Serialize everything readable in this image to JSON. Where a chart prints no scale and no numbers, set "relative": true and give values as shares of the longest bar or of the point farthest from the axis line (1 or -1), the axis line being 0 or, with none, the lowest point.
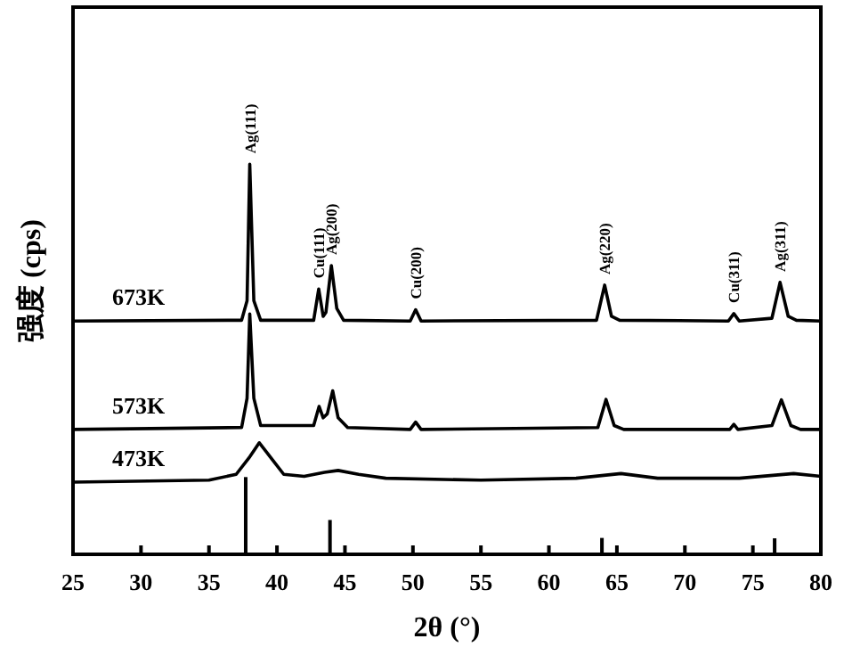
{
  "chart_data": {
    "type": "line",
    "xlabel": "2θ (°)",
    "ylabel": "强度 (cps)",
    "relative": true,
    "xlim": [
      25,
      80
    ],
    "xticks": [
      25,
      30,
      35,
      40,
      45,
      50,
      55,
      60,
      65,
      70,
      75,
      80
    ],
    "line_style": "solid",
    "series": [
      {
        "name": "673K",
        "color": "#000000",
        "x": [
          25,
          37.4,
          37.8,
          38.0,
          38.3,
          38.8,
          42.7,
          43.07,
          43.4,
          43.6,
          44.0,
          44.4,
          44.9,
          49.8,
          50.2,
          50.6,
          63.5,
          64.1,
          64.6,
          65.2,
          73.2,
          73.6,
          74.0,
          76.4,
          77.0,
          77.6,
          78.2,
          80
        ],
        "values": [
          0.598,
          0.6,
          0.65,
          1.0,
          0.65,
          0.6,
          0.6,
          0.68,
          0.61,
          0.62,
          0.74,
          0.63,
          0.6,
          0.598,
          0.627,
          0.598,
          0.6,
          0.69,
          0.61,
          0.6,
          0.598,
          0.617,
          0.598,
          0.605,
          0.697,
          0.61,
          0.6,
          0.598
        ]
      },
      {
        "name": "573K",
        "color": "#000000",
        "x": [
          25,
          37.4,
          37.8,
          38.0,
          38.3,
          38.8,
          42.7,
          43.1,
          43.4,
          43.7,
          44.1,
          44.5,
          45.2,
          49.8,
          50.2,
          50.6,
          63.6,
          64.2,
          64.8,
          65.5,
          73.3,
          73.6,
          73.9,
          76.4,
          77.1,
          77.8,
          78.5,
          80
        ],
        "values": [
          0.32,
          0.325,
          0.4,
          0.616,
          0.4,
          0.33,
          0.33,
          0.379,
          0.35,
          0.36,
          0.419,
          0.35,
          0.325,
          0.32,
          0.339,
          0.32,
          0.325,
          0.397,
          0.33,
          0.32,
          0.32,
          0.333,
          0.32,
          0.33,
          0.396,
          0.33,
          0.32,
          0.32
        ]
      },
      {
        "name": "473K",
        "color": "#000000",
        "x": [
          25,
          35,
          37,
          38,
          38.7,
          39.5,
          40.5,
          42,
          43.5,
          44.5,
          46,
          48,
          55,
          62,
          65.3,
          68,
          74,
          78,
          80
        ],
        "values": [
          0.185,
          0.19,
          0.205,
          0.25,
          0.286,
          0.25,
          0.205,
          0.2,
          0.21,
          0.215,
          0.205,
          0.195,
          0.19,
          0.195,
          0.207,
          0.195,
          0.195,
          0.207,
          0.2
        ]
      },
      {
        "type": "bar",
        "color": "#000000",
        "x": [
          37.7,
          43.9,
          63.9,
          76.6
        ],
        "values": [
          0.198,
          0.088,
          0.042,
          0.041
        ]
      }
    ],
    "annotations": [
      {
        "text": "Ag(111)",
        "x": 38.0,
        "y": 1.0
      },
      {
        "text": "Cu(111)",
        "x": 43.07,
        "y": 0.68
      },
      {
        "text": "Ag(200)",
        "x": 44.0,
        "y": 0.74
      },
      {
        "text": "Cu(200)",
        "x": 50.2,
        "y": 0.627
      },
      {
        "text": "Ag(220)",
        "x": 64.1,
        "y": 0.69
      },
      {
        "text": "Cu(311)",
        "x": 73.6,
        "y": 0.617
      },
      {
        "text": "Ag(311)",
        "x": 77.0,
        "y": 0.697
      }
    ]
  }
}
